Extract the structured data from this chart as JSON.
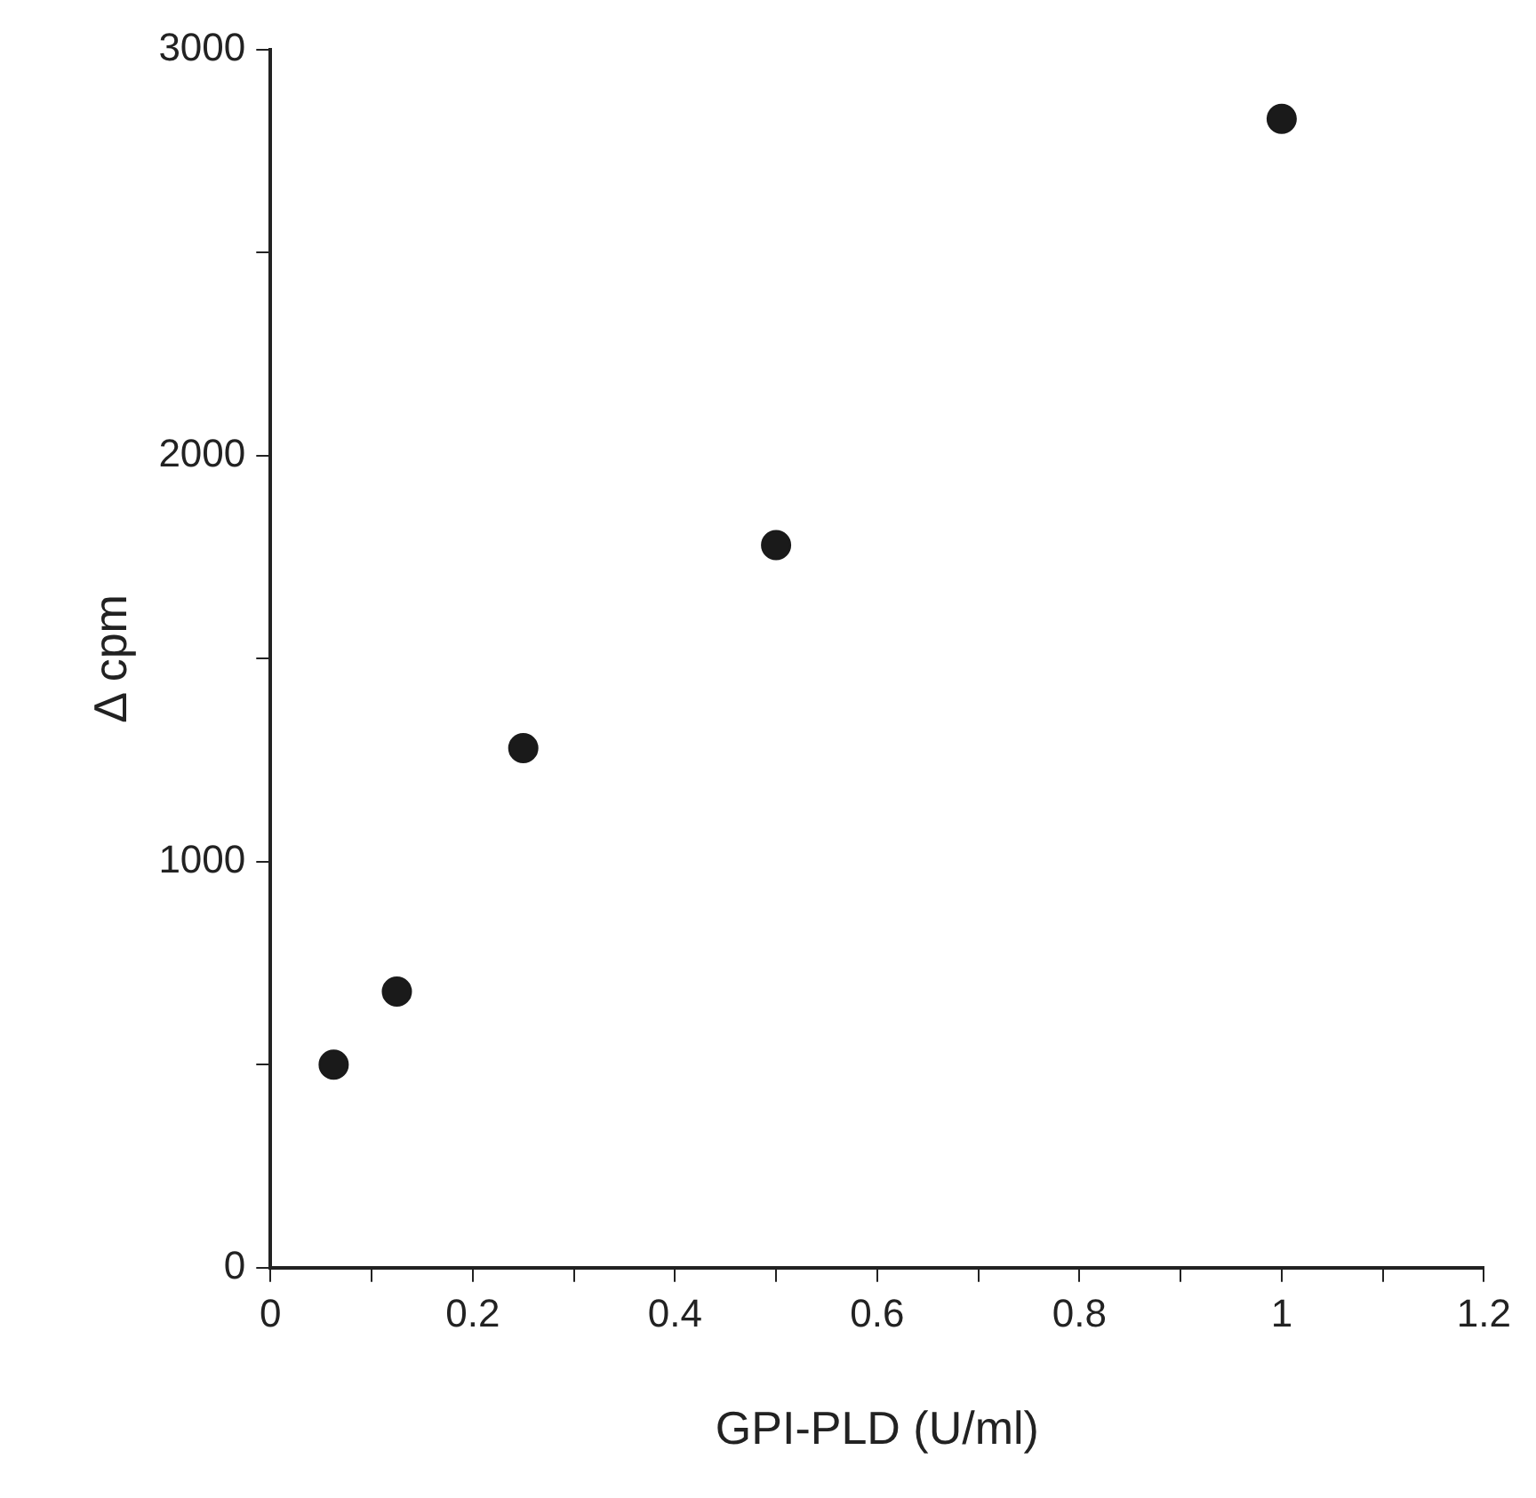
{
  "chart_data": {
    "type": "scatter",
    "xlabel": "GPI-PLD (U/ml)",
    "ylabel": "Δ cpm",
    "x": [
      0.0625,
      0.125,
      0.25,
      0.5,
      1
    ],
    "series": [
      {
        "color": "#1a1a1a",
        "values": [
          500,
          680,
          1280,
          1780,
          2830
        ]
      }
    ],
    "xlim": [
      0,
      1.2
    ],
    "xticks": [
      0,
      {
        "value": 0.1,
        "label": null
      },
      0.2,
      {
        "value": 0.3,
        "label": null
      },
      0.4,
      {
        "value": 0.5,
        "label": null
      },
      0.6,
      {
        "value": 0.7,
        "label": null
      },
      0.8,
      {
        "value": 0.9,
        "label": null
      },
      1,
      {
        "value": 1.1,
        "label": null
      },
      1.2
    ],
    "ylim": [
      0,
      3000
    ],
    "yticks": [
      0,
      {
        "value": 500,
        "label": null
      },
      1000,
      {
        "value": 1500,
        "label": null
      },
      2000,
      {
        "value": 2500,
        "label": null
      },
      3000
    ],
    "grid": false,
    "legend": false,
    "marker": "circle"
  }
}
